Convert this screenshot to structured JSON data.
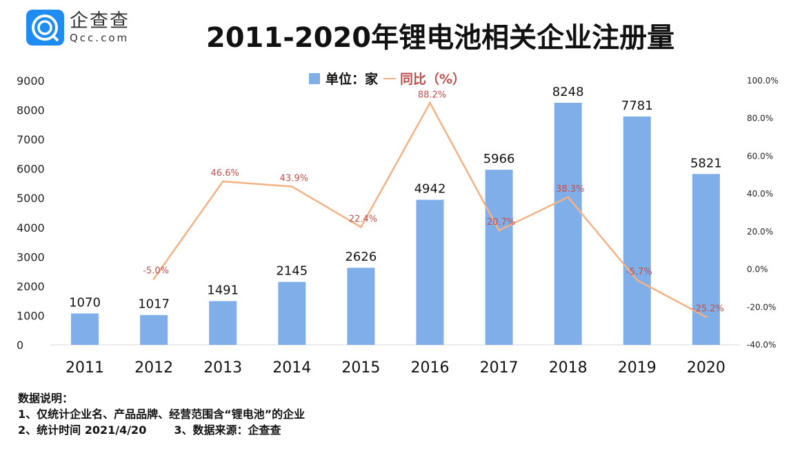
{
  "logo": {
    "cn": "企查查",
    "en": "Qcc.com"
  },
  "title": "2011-2020年锂电池相关企业注册量",
  "notes": {
    "heading": "数据说明：",
    "line1": "1、仅统计企业名、产品品牌、经营范围含“锂电池”的企业",
    "line2a": "2、统计时间 2021/4/20",
    "line2b": "3、数据来源：企查查"
  },
  "chart_data": {
    "type": "bar+line",
    "title": "2011-2020年锂电池相关企业注册量",
    "categories": [
      "2011",
      "2012",
      "2013",
      "2014",
      "2015",
      "2016",
      "2017",
      "2018",
      "2019",
      "2020"
    ],
    "series": [
      {
        "name": "单位：家",
        "type": "bar",
        "axis": "left",
        "color": "#7faee8",
        "values": [
          1070,
          1017,
          1491,
          2145,
          2626,
          4942,
          5966,
          8248,
          7781,
          5821
        ]
      },
      {
        "name": "同比（%）",
        "type": "line",
        "axis": "right",
        "color": "#f4b183",
        "label_color": "#c0504d",
        "values": [
          null,
          -5.0,
          46.6,
          43.9,
          22.4,
          88.2,
          20.7,
          38.3,
          -5.7,
          -25.2
        ],
        "labels": [
          "",
          "-5.0%",
          "46.6%",
          "43.9%",
          "22.4%",
          "88.2%",
          "20.7%",
          "38.3%",
          "-5.7%",
          "-25.2%"
        ]
      }
    ],
    "left_axis": {
      "range": [
        0,
        9000
      ],
      "ticks": [
        "0",
        "1000",
        "2000",
        "3000",
        "4000",
        "5000",
        "6000",
        "7000",
        "8000",
        "9000"
      ]
    },
    "right_axis": {
      "range": [
        -40,
        100
      ],
      "ticks": [
        "-40.0%",
        "-20.0%",
        "0.0%",
        "20.0%",
        "40.0%",
        "60.0%",
        "80.0%",
        "100.0%"
      ]
    },
    "grid": false,
    "legend": "top-center"
  }
}
